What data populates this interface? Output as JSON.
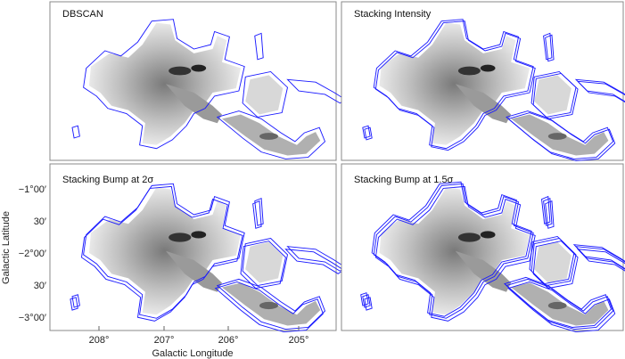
{
  "panels": [
    {
      "title": "DBSCAN"
    },
    {
      "title": "Stacking Intensity"
    },
    {
      "title": "Stacking Bump at 2σ"
    },
    {
      "title": "Stacking Bump at 1.5σ"
    }
  ],
  "xaxis": {
    "label": "Galactic Longitude",
    "ticks": [
      "208°",
      "207°",
      "206°",
      "205°"
    ]
  },
  "yaxis": {
    "label": "Galactic Latitude",
    "ticks": [
      "−1°00′",
      "30′",
      "−2°00′",
      "30′",
      "−3°00′"
    ]
  },
  "colors": {
    "contour": "#1a1aff",
    "frame": "#888888",
    "emission": "#808080"
  }
}
